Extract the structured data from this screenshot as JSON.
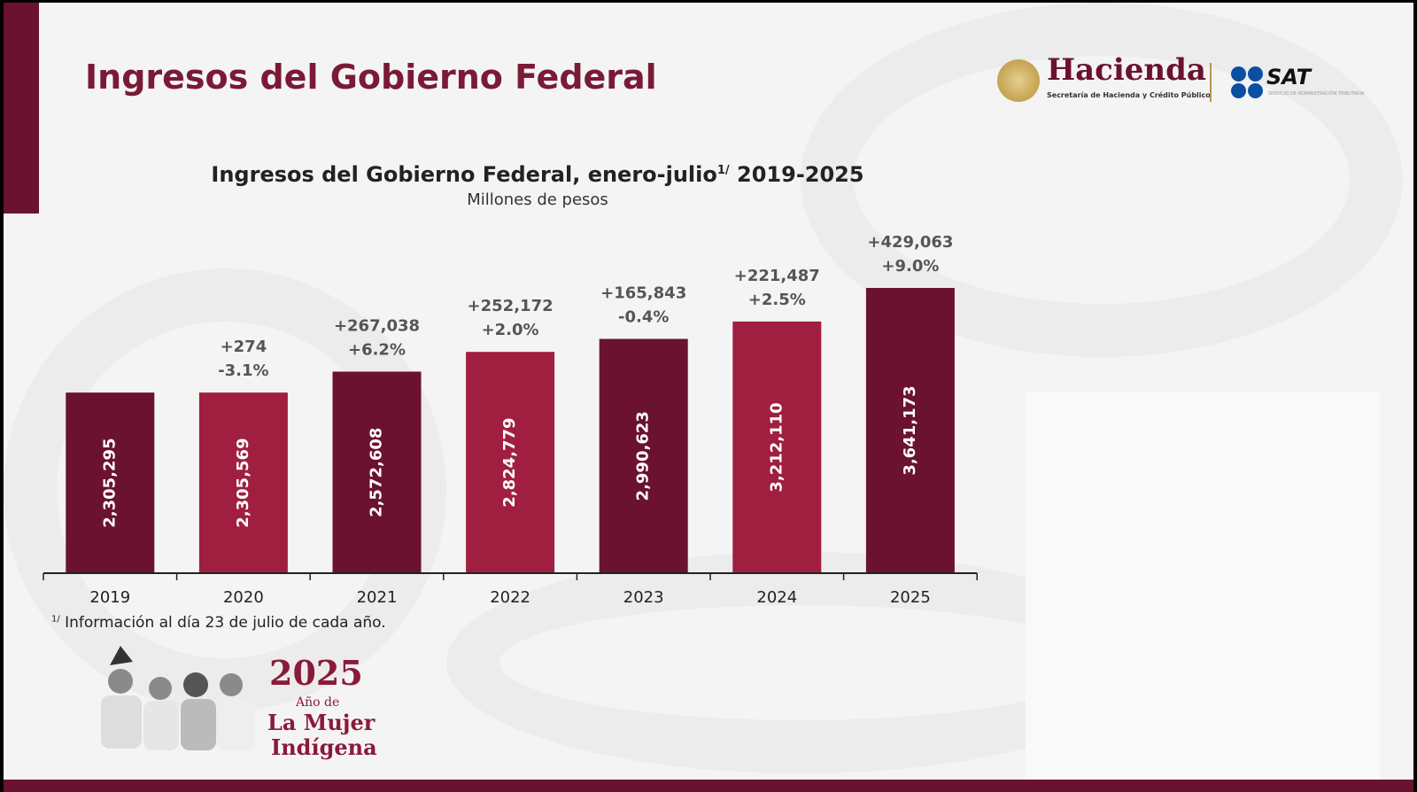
{
  "header": {
    "title": "Ingresos del Gobierno Federal",
    "logo_hacienda": "Hacienda",
    "logo_hacienda_sub": "Secretaría de Hacienda y Crédito Público",
    "logo_sat": "SAT",
    "logo_sat_sub": "SERVICIO DE ADMINISTRACIÓN TRIBUTARIA"
  },
  "colors": {
    "dark": "#6b1230",
    "light": "#a01f40"
  },
  "chart_data": {
    "type": "bar",
    "title": "Ingresos del Gobierno Federal, enero-julio",
    "title_sup": "1/",
    "title_years": " 2019-2025",
    "subtitle": "Millones de pesos",
    "categories": [
      "2019",
      "2020",
      "2021",
      "2022",
      "2023",
      "2024",
      "2025"
    ],
    "values": [
      2305295,
      2305569,
      2572608,
      2824779,
      2990623,
      3212110,
      3641173
    ],
    "value_labels": [
      "2,305,295",
      "2,305,569",
      "2,572,608",
      "2,824,779",
      "2,990,623",
      "3,212,110",
      "3,641,173"
    ],
    "change_abs": [
      "",
      "+274",
      "+267,038",
      "+252,172",
      "+165,843",
      "+221,487",
      "+429,063"
    ],
    "change_pct": [
      "",
      "-3.1%",
      "+6.2%",
      "+2.0%",
      "-0.4%",
      "+2.5%",
      "+9.0%"
    ],
    "bar_colors": [
      "#6b1230",
      "#a01f40",
      "#6b1230",
      "#a01f40",
      "#6b1230",
      "#a01f40",
      "#6b1230"
    ],
    "ylim": [
      0,
      3641173
    ],
    "xlabel": "",
    "ylabel": ""
  },
  "footnote": {
    "sup": "1/",
    "text": " Información al día 23 de julio de cada año."
  },
  "badge": {
    "year": "2025",
    "line1": "Año de",
    "line2": "La Mujer",
    "line3": "Indígena"
  }
}
